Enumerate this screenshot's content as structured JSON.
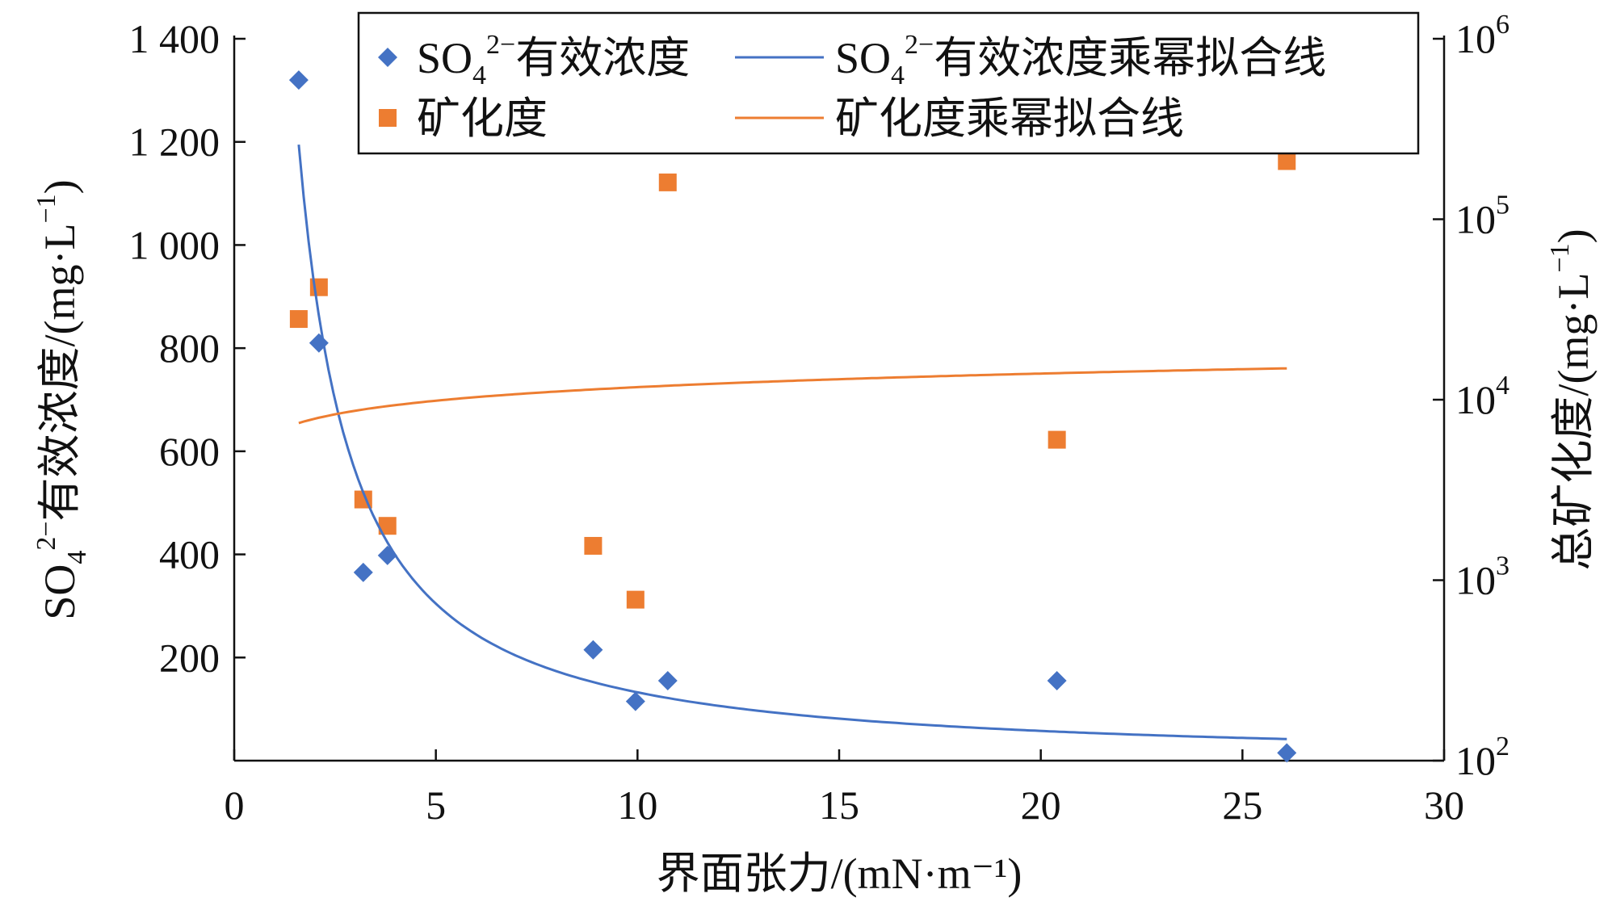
{
  "chart_data": {
    "type": "scatter",
    "xlabel": "界面张力/(mN·m⁻¹)",
    "ylabel_left": {
      "main": "SO",
      "sub": "4",
      "sup": "2−",
      "rest": "有效浓度/(mg·L",
      "unit_sup": "−1",
      "end": ")"
    },
    "ylabel_right": {
      "main": "总矿化度/(mg·L",
      "unit_sup": "−1",
      "end": ")"
    },
    "x_ticks": [
      "0",
      "5",
      "10",
      "15",
      "20",
      "25",
      "30"
    ],
    "xlim": [
      0,
      30
    ],
    "y_left_ticks": [
      "200",
      "400",
      "600",
      "800",
      "1 000",
      "1 200",
      "1 400"
    ],
    "y_left_lim": [
      0,
      1400
    ],
    "y_right_ticks": [
      {
        "base": "10",
        "exp": "2"
      },
      {
        "base": "10",
        "exp": "3"
      },
      {
        "base": "10",
        "exp": "4"
      },
      {
        "base": "10",
        "exp": "5"
      },
      {
        "base": "10",
        "exp": "6"
      }
    ],
    "y_right_scale": "log",
    "y_right_lim": [
      100,
      1000000
    ],
    "legend": [
      {
        "id": "so4",
        "kind": "marker",
        "label_main": "SO",
        "label_sub": "4",
        "label_sup": "2−",
        "label_rest": "有效浓度",
        "color": "#4472C4"
      },
      {
        "id": "so4fit",
        "kind": "line",
        "label_main": "SO",
        "label_sub": "4",
        "label_sup": "2−",
        "label_rest": "有效浓度乘幂拟合线",
        "color": "#4472C4"
      },
      {
        "id": "tds",
        "kind": "marker",
        "label_main": "矿化度",
        "color": "#ED7D31"
      },
      {
        "id": "tdsfit",
        "kind": "line",
        "label_main": "矿化度乘幂拟合线",
        "color": "#ED7D31"
      }
    ],
    "legend_position": "top",
    "series": [
      {
        "id": "so4",
        "axis": "left",
        "marker": "diamond",
        "color": "#4472C4",
        "points": [
          [
            1.6,
            1320
          ],
          [
            2.1,
            810
          ],
          [
            3.2,
            365
          ],
          [
            3.8,
            398
          ],
          [
            8.9,
            215
          ],
          [
            9.95,
            115
          ],
          [
            10.75,
            155
          ],
          [
            20.4,
            155
          ],
          [
            26.1,
            15
          ]
        ]
      },
      {
        "id": "tds",
        "axis": "right",
        "marker": "square",
        "color": "#ED7D31",
        "points": [
          [
            1.6,
            28000
          ],
          [
            2.1,
            42000
          ],
          [
            3.2,
            2800
          ],
          [
            3.8,
            2000
          ],
          [
            8.9,
            1550
          ],
          [
            9.95,
            780
          ],
          [
            10.75,
            160000
          ],
          [
            20.4,
            6000
          ],
          [
            26.1,
            210000
          ]
        ]
      },
      {
        "id": "so4fit",
        "axis": "left",
        "type": "power-fit",
        "color": "#4472C4",
        "x_range": [
          1.6,
          26.1
        ],
        "coef": 2100,
        "exp": -1.2
      },
      {
        "id": "tdsfit",
        "axis": "right",
        "type": "power-fit",
        "color": "#ED7D31",
        "x_range": [
          1.6,
          26.1
        ],
        "coef": 6600,
        "exp": 0.25
      }
    ],
    "grid": false
  }
}
